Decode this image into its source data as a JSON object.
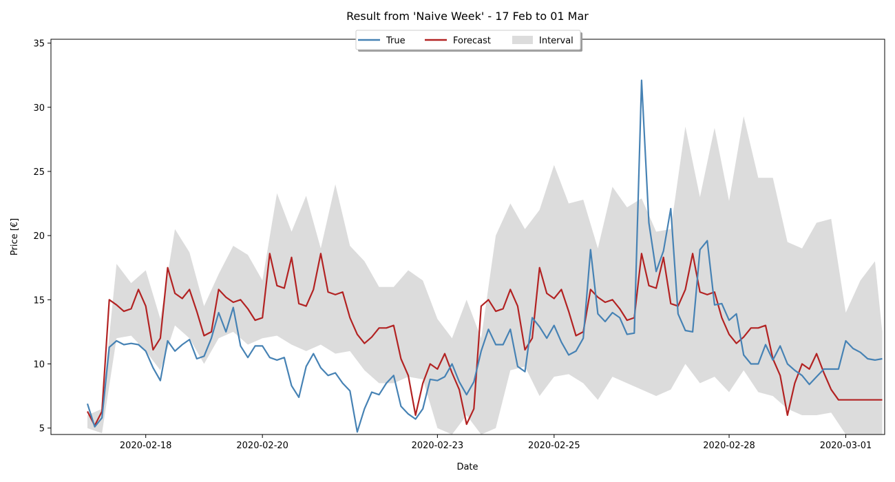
{
  "chart_data": {
    "type": "line",
    "title": "Result from 'Naive Week' - 17 Feb to 01 Mar",
    "xlabel": "Date",
    "ylabel": "Price [€]",
    "ylim": [
      4.5,
      35.3
    ],
    "xlim": [
      "2020-02-16T09:00",
      "2020-03-01T16:00"
    ],
    "yticks": [
      5,
      10,
      15,
      20,
      25,
      30,
      35
    ],
    "xticks": [
      "2020-02-18",
      "2020-02-20",
      "2020-02-23",
      "2020-02-25",
      "2020-02-28",
      "2020-03-01"
    ],
    "legend": {
      "position": "top-center",
      "entries": [
        "True",
        "Forecast",
        "Interval"
      ]
    },
    "grid": false,
    "colors": {
      "true": "#4682b4",
      "forecast": "#b22222",
      "interval": "#dcdcdc"
    },
    "series": [
      {
        "name": "True",
        "x": [
          "2020-02-17T00:00",
          "2020-02-17T03:00",
          "2020-02-17T06:00",
          "2020-02-17T09:00",
          "2020-02-17T12:00",
          "2020-02-17T15:00",
          "2020-02-17T18:00",
          "2020-02-17T21:00",
          "2020-02-18T00:00",
          "2020-02-18T03:00",
          "2020-02-18T06:00",
          "2020-02-18T09:00",
          "2020-02-18T12:00",
          "2020-02-18T15:00",
          "2020-02-18T18:00",
          "2020-02-18T21:00",
          "2020-02-19T00:00",
          "2020-02-19T03:00",
          "2020-02-19T06:00",
          "2020-02-19T09:00",
          "2020-02-19T12:00",
          "2020-02-19T15:00",
          "2020-02-19T18:00",
          "2020-02-19T21:00",
          "2020-02-20T00:00",
          "2020-02-20T03:00",
          "2020-02-20T06:00",
          "2020-02-20T09:00",
          "2020-02-20T12:00",
          "2020-02-20T15:00",
          "2020-02-20T18:00",
          "2020-02-20T21:00",
          "2020-02-21T00:00",
          "2020-02-21T03:00",
          "2020-02-21T06:00",
          "2020-02-21T09:00",
          "2020-02-21T12:00",
          "2020-02-21T15:00",
          "2020-02-21T18:00",
          "2020-02-21T21:00",
          "2020-02-22T00:00",
          "2020-02-22T03:00",
          "2020-02-22T06:00",
          "2020-02-22T09:00",
          "2020-02-22T12:00",
          "2020-02-22T15:00",
          "2020-02-22T18:00",
          "2020-02-22T21:00",
          "2020-02-23T00:00",
          "2020-02-23T03:00",
          "2020-02-23T06:00",
          "2020-02-23T09:00",
          "2020-02-23T12:00",
          "2020-02-23T15:00",
          "2020-02-23T18:00",
          "2020-02-23T21:00",
          "2020-02-24T00:00",
          "2020-02-24T03:00",
          "2020-02-24T06:00",
          "2020-02-24T09:00",
          "2020-02-24T12:00",
          "2020-02-24T15:00",
          "2020-02-24T18:00",
          "2020-02-24T21:00",
          "2020-02-25T00:00",
          "2020-02-25T03:00",
          "2020-02-25T06:00",
          "2020-02-25T09:00",
          "2020-02-25T12:00",
          "2020-02-25T15:00",
          "2020-02-25T18:00",
          "2020-02-25T21:00",
          "2020-02-26T00:00",
          "2020-02-26T03:00",
          "2020-02-26T06:00",
          "2020-02-26T09:00",
          "2020-02-26T12:00",
          "2020-02-26T15:00",
          "2020-02-26T18:00",
          "2020-02-26T21:00",
          "2020-02-27T00:00",
          "2020-02-27T03:00",
          "2020-02-27T06:00",
          "2020-02-27T09:00",
          "2020-02-27T12:00",
          "2020-02-27T15:00",
          "2020-02-27T18:00",
          "2020-02-27T21:00",
          "2020-02-28T00:00",
          "2020-02-28T03:00",
          "2020-02-28T06:00",
          "2020-02-28T09:00",
          "2020-02-28T12:00",
          "2020-02-28T15:00",
          "2020-02-28T18:00",
          "2020-02-28T21:00",
          "2020-02-29T00:00",
          "2020-02-29T03:00",
          "2020-02-29T06:00",
          "2020-02-29T09:00",
          "2020-02-29T12:00",
          "2020-02-29T15:00",
          "2020-02-29T18:00",
          "2020-02-29T21:00",
          "2020-03-01T00:00",
          "2020-03-01T03:00",
          "2020-03-01T06:00",
          "2020-03-01T09:00",
          "2020-03-01T12:00",
          "2020-03-01T15:00"
        ],
        "values": [
          6.9,
          5.1,
          5.8,
          11.3,
          11.8,
          11.5,
          11.6,
          11.5,
          11.0,
          9.7,
          8.7,
          11.8,
          11.0,
          11.5,
          11.9,
          10.4,
          10.6,
          12.0,
          14.0,
          12.5,
          14.4,
          11.4,
          10.5,
          11.4,
          11.4,
          10.5,
          10.3,
          10.5,
          8.3,
          7.4,
          9.8,
          10.8,
          9.7,
          9.1,
          9.3,
          8.5,
          7.9,
          4.7,
          6.5,
          7.8,
          7.6,
          8.5,
          9.1,
          6.7,
          6.1,
          5.7,
          6.5,
          8.8,
          8.7,
          9.0,
          10.0,
          8.6,
          7.6,
          8.6,
          11.0,
          12.7,
          11.5,
          11.5,
          12.7,
          9.8,
          9.4,
          13.6,
          12.9,
          12.0,
          13.0,
          11.7,
          10.7,
          11.0,
          12.0,
          18.9,
          13.9,
          13.3,
          14.0,
          13.6,
          12.3,
          12.4,
          32.1,
          21.0,
          17.2,
          18.8,
          22.1,
          13.9,
          12.6,
          12.5,
          18.9,
          19.6,
          14.6,
          14.7,
          13.4,
          13.9,
          10.7,
          10.0,
          10.0,
          11.5,
          10.3,
          11.4,
          10.0,
          9.5,
          9.1,
          8.4,
          9.0,
          9.6,
          9.6,
          9.6,
          11.8,
          11.2,
          10.9,
          10.4,
          10.3,
          10.4
        ]
      },
      {
        "name": "Forecast",
        "x": [
          "2020-02-17T00:00",
          "2020-02-17T03:00",
          "2020-02-17T06:00",
          "2020-02-17T09:00",
          "2020-02-17T12:00",
          "2020-02-17T15:00",
          "2020-02-17T18:00",
          "2020-02-17T21:00",
          "2020-02-18T00:00",
          "2020-02-18T03:00",
          "2020-02-18T06:00",
          "2020-02-18T09:00",
          "2020-02-18T12:00",
          "2020-02-18T15:00",
          "2020-02-18T18:00",
          "2020-02-18T21:00",
          "2020-02-19T00:00",
          "2020-02-19T03:00",
          "2020-02-19T06:00",
          "2020-02-19T09:00",
          "2020-02-19T12:00",
          "2020-02-19T15:00",
          "2020-02-19T18:00",
          "2020-02-19T21:00",
          "2020-02-20T00:00",
          "2020-02-20T03:00",
          "2020-02-20T06:00",
          "2020-02-20T09:00",
          "2020-02-20T12:00",
          "2020-02-20T15:00",
          "2020-02-20T18:00",
          "2020-02-20T21:00",
          "2020-02-21T00:00",
          "2020-02-21T03:00",
          "2020-02-21T06:00",
          "2020-02-21T09:00",
          "2020-02-21T12:00",
          "2020-02-21T15:00",
          "2020-02-21T18:00",
          "2020-02-21T21:00",
          "2020-02-22T00:00",
          "2020-02-22T03:00",
          "2020-02-22T06:00",
          "2020-02-22T09:00",
          "2020-02-22T12:00",
          "2020-02-22T15:00",
          "2020-02-22T18:00",
          "2020-02-22T21:00",
          "2020-02-23T00:00",
          "2020-02-23T03:00",
          "2020-02-23T06:00",
          "2020-02-23T09:00",
          "2020-02-23T12:00",
          "2020-02-23T15:00",
          "2020-02-23T18:00",
          "2020-02-23T21:00",
          "2020-02-24T00:00",
          "2020-02-24T03:00",
          "2020-02-24T06:00",
          "2020-02-24T09:00",
          "2020-02-24T12:00",
          "2020-02-24T15:00",
          "2020-02-24T18:00",
          "2020-02-24T21:00",
          "2020-02-25T00:00",
          "2020-02-25T03:00",
          "2020-02-25T06:00",
          "2020-02-25T09:00",
          "2020-02-25T12:00",
          "2020-02-25T15:00",
          "2020-02-25T18:00",
          "2020-02-25T21:00",
          "2020-02-26T00:00",
          "2020-02-26T03:00",
          "2020-02-26T06:00",
          "2020-02-26T09:00",
          "2020-02-26T12:00",
          "2020-02-26T15:00",
          "2020-02-26T18:00",
          "2020-02-26T21:00",
          "2020-02-27T00:00",
          "2020-02-27T03:00",
          "2020-02-27T06:00",
          "2020-02-27T09:00",
          "2020-02-27T12:00",
          "2020-02-27T15:00",
          "2020-02-27T18:00",
          "2020-02-27T21:00",
          "2020-02-28T00:00",
          "2020-02-28T03:00",
          "2020-02-28T06:00",
          "2020-02-28T09:00",
          "2020-02-28T12:00",
          "2020-02-28T15:00",
          "2020-02-28T18:00",
          "2020-02-28T21:00",
          "2020-02-29T00:00",
          "2020-02-29T03:00",
          "2020-02-29T06:00",
          "2020-02-29T09:00",
          "2020-02-29T12:00",
          "2020-02-29T15:00",
          "2020-02-29T18:00",
          "2020-02-29T21:00",
          "2020-03-01T00:00",
          "2020-03-01T03:00",
          "2020-03-01T06:00",
          "2020-03-01T09:00",
          "2020-03-01T12:00",
          "2020-03-01T15:00"
        ],
        "values": [
          6.3,
          5.2,
          6.3,
          15.0,
          14.6,
          14.1,
          14.3,
          15.8,
          14.5,
          11.1,
          12.0,
          17.5,
          15.5,
          15.1,
          15.8,
          14.1,
          12.2,
          12.5,
          15.8,
          15.2,
          14.8,
          15.0,
          14.3,
          13.4,
          13.6,
          18.6,
          16.1,
          15.9,
          18.3,
          14.7,
          14.5,
          15.8,
          18.6,
          15.6,
          15.4,
          15.6,
          13.6,
          12.3,
          11.6,
          12.1,
          12.8,
          12.8,
          13.0,
          10.4,
          9.1,
          6.0,
          8.5,
          10.0,
          9.6,
          10.8,
          9.3,
          8.0,
          5.3,
          6.5,
          14.5,
          15.0,
          14.1,
          14.3,
          15.8,
          14.5,
          11.1,
          12.0,
          17.5,
          15.5,
          15.1,
          15.8,
          14.1,
          12.2,
          12.5,
          15.8,
          15.2,
          14.8,
          15.0,
          14.3,
          13.4,
          13.6,
          18.6,
          16.1,
          15.9,
          18.3,
          14.7,
          14.5,
          15.8,
          18.6,
          15.6,
          15.4,
          15.6,
          13.6,
          12.3,
          11.6,
          12.1,
          12.8,
          12.8,
          13.0,
          10.4,
          9.1,
          6.0,
          8.5,
          10.0,
          9.6,
          10.8,
          9.3,
          8.0,
          7.2,
          7.2,
          7.2,
          7.2,
          7.2,
          7.2,
          7.2
        ]
      }
    ],
    "interval": {
      "name": "Interval",
      "x": [
        "2020-02-17T00:00",
        "2020-02-17T06:00",
        "2020-02-17T12:00",
        "2020-02-17T18:00",
        "2020-02-18T00:00",
        "2020-02-18T06:00",
        "2020-02-18T12:00",
        "2020-02-18T18:00",
        "2020-02-19T00:00",
        "2020-02-19T06:00",
        "2020-02-19T12:00",
        "2020-02-19T18:00",
        "2020-02-20T00:00",
        "2020-02-20T06:00",
        "2020-02-20T12:00",
        "2020-02-20T18:00",
        "2020-02-21T00:00",
        "2020-02-21T06:00",
        "2020-02-21T12:00",
        "2020-02-21T18:00",
        "2020-02-22T00:00",
        "2020-02-22T06:00",
        "2020-02-22T12:00",
        "2020-02-22T18:00",
        "2020-02-23T00:00",
        "2020-02-23T06:00",
        "2020-02-23T12:00",
        "2020-02-23T18:00",
        "2020-02-24T00:00",
        "2020-02-24T06:00",
        "2020-02-24T12:00",
        "2020-02-24T18:00",
        "2020-02-25T00:00",
        "2020-02-25T06:00",
        "2020-02-25T12:00",
        "2020-02-25T18:00",
        "2020-02-26T00:00",
        "2020-02-26T06:00",
        "2020-02-26T12:00",
        "2020-02-26T18:00",
        "2020-02-27T00:00",
        "2020-02-27T06:00",
        "2020-02-27T12:00",
        "2020-02-27T18:00",
        "2020-02-28T00:00",
        "2020-02-28T06:00",
        "2020-02-28T12:00",
        "2020-02-28T18:00",
        "2020-02-29T00:00",
        "2020-02-29T06:00",
        "2020-02-29T12:00",
        "2020-02-29T18:00",
        "2020-03-01T00:00",
        "2020-03-01T06:00",
        "2020-03-01T12:00",
        "2020-03-01T15:00"
      ],
      "lower": [
        5.0,
        4.6,
        12.0,
        12.2,
        11.0,
        9.5,
        13.0,
        12.0,
        10.0,
        12.0,
        12.5,
        11.5,
        12.0,
        12.2,
        11.5,
        11.0,
        11.5,
        10.8,
        11.0,
        9.5,
        8.5,
        8.5,
        9.0,
        8.8,
        5.0,
        4.5,
        6.0,
        4.5,
        5.0,
        9.5,
        9.8,
        7.5,
        9.0,
        9.2,
        8.5,
        7.2,
        9.0,
        8.5,
        8.0,
        7.5,
        8.0,
        10.0,
        8.5,
        9.0,
        7.8,
        9.5,
        7.8,
        7.5,
        6.5,
        6.0,
        6.0,
        6.2,
        4.5,
        4.5,
        4.5,
        4.5
      ],
      "upper": [
        6.0,
        6.5,
        17.8,
        16.3,
        17.3,
        13.5,
        20.5,
        18.7,
        14.5,
        17.0,
        19.2,
        18.5,
        16.5,
        23.3,
        20.3,
        23.1,
        19.0,
        24.0,
        19.2,
        18.0,
        16.0,
        16.0,
        17.3,
        16.5,
        13.5,
        12.0,
        15.0,
        12.0,
        20.0,
        22.5,
        20.5,
        22.0,
        25.5,
        22.5,
        22.8,
        19.0,
        23.8,
        22.2,
        22.9,
        20.3,
        20.5,
        28.5,
        23.0,
        28.4,
        22.7,
        29.3,
        24.5,
        24.5,
        19.5,
        19.0,
        21.0,
        21.3,
        14.0,
        16.5,
        18.0,
        12.5
      ]
    }
  }
}
